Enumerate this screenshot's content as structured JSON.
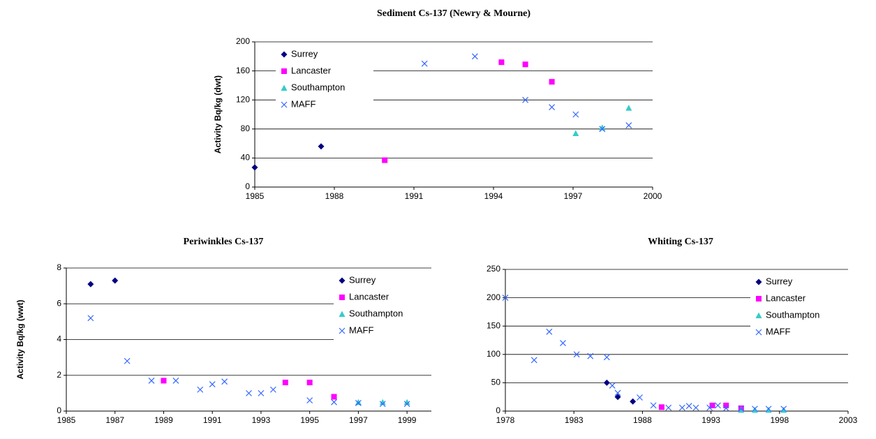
{
  "chart_data": [
    {
      "type": "scatter",
      "title": "Sediment Cs-137 (Newry & Mourne)",
      "y_label": "Activity Bq/kg (dwt)",
      "xlim": [
        1985,
        2000
      ],
      "xticks": [
        1985,
        1988,
        1991,
        1994,
        1997,
        2000
      ],
      "ylim": [
        0,
        200
      ],
      "yticks": [
        0,
        40,
        80,
        120,
        160,
        200
      ],
      "grid": true,
      "legend": "upper left",
      "series": [
        {
          "name": "Surrey",
          "color": "#000080",
          "marker": "diamond",
          "x": [
            1985.0,
            1987.5
          ],
          "values": [
            27,
            56
          ]
        },
        {
          "name": "Lancaster",
          "color": "#ff00ff",
          "marker": "square",
          "x": [
            1989.9,
            1994.3,
            1995.2,
            1996.2
          ],
          "values": [
            37,
            172,
            169,
            145
          ]
        },
        {
          "name": "Southampton",
          "color": "#33cccc",
          "marker": "triangle",
          "x": [
            1997.1,
            1998.1,
            1999.1
          ],
          "values": [
            74,
            82,
            109
          ]
        },
        {
          "name": "MAFF",
          "color": "#3366ff",
          "marker": "x",
          "x": [
            1991.4,
            1993.3,
            1995.2,
            1996.2,
            1997.1,
            1998.1,
            1999.1
          ],
          "values": [
            170,
            180,
            120,
            110,
            100,
            80,
            85
          ]
        }
      ]
    },
    {
      "type": "scatter",
      "title": "Periwinkles Cs-137",
      "y_label": "Activity Bq/kg (wwt)",
      "xlim": [
        1985,
        2000
      ],
      "xticks": [
        1985,
        1987,
        1989,
        1991,
        1993,
        1995,
        1997,
        1999
      ],
      "ylim": [
        0,
        8
      ],
      "yticks": [
        0,
        2,
        4,
        6,
        8
      ],
      "grid": true,
      "legend": "upper right",
      "series": [
        {
          "name": "Surrey",
          "color": "#000080",
          "marker": "diamond",
          "x": [
            1986,
            1987
          ],
          "values": [
            7.1,
            7.3
          ]
        },
        {
          "name": "Lancaster",
          "color": "#ff00ff",
          "marker": "square",
          "x": [
            1989,
            1994,
            1995,
            1996
          ],
          "values": [
            1.7,
            1.6,
            1.6,
            0.8
          ]
        },
        {
          "name": "Southampton",
          "color": "#33cccc",
          "marker": "triangle",
          "x": [
            1997,
            1998,
            1999
          ],
          "values": [
            0.5,
            0.5,
            0.5
          ]
        },
        {
          "name": "MAFF",
          "color": "#3366ff",
          "marker": "x",
          "x": [
            1986,
            1987.5,
            1988.5,
            1989.5,
            1990.5,
            1991,
            1991.5,
            1992.5,
            1993,
            1993.5,
            1995,
            1996,
            1997,
            1998,
            1999
          ],
          "values": [
            5.2,
            2.8,
            1.7,
            1.7,
            1.2,
            1.5,
            1.65,
            1.0,
            1.0,
            1.2,
            0.6,
            0.5,
            0.45,
            0.4,
            0.4
          ]
        }
      ]
    },
    {
      "type": "scatter",
      "title": "Whiting Cs-137",
      "xlim": [
        1978,
        2003
      ],
      "xticks": [
        1978,
        1983,
        1988,
        1993,
        1998,
        2003
      ],
      "ylim": [
        0,
        250
      ],
      "yticks": [
        0,
        50,
        100,
        150,
        200,
        250
      ],
      "grid": true,
      "legend": "upper right",
      "series": [
        {
          "name": "Surrey",
          "color": "#000080",
          "marker": "diamond",
          "x": [
            1985.4,
            1986.2,
            1987.3
          ],
          "values": [
            50,
            25,
            17
          ]
        },
        {
          "name": "Lancaster",
          "color": "#ff00ff",
          "marker": "square",
          "x": [
            1989.4,
            1993.1,
            1994.1,
            1995.2
          ],
          "values": [
            7,
            10,
            10,
            5
          ]
        },
        {
          "name": "Southampton",
          "color": "#33cccc",
          "marker": "triangle",
          "x": [
            1995.2,
            1996.2,
            1997.2,
            1998.3
          ],
          "values": [
            2,
            2,
            2,
            2
          ]
        },
        {
          "name": "MAFF",
          "color": "#3366ff",
          "marker": "x",
          "x": [
            1978,
            1980.1,
            1981.2,
            1982.2,
            1983.2,
            1984.2,
            1985.4,
            1985.8,
            1986.2,
            1987.8,
            1988.8,
            1989.9,
            1990.9,
            1991.4,
            1991.9,
            1992.9,
            1993.5,
            1994.1,
            1995.2,
            1996.2,
            1997.2,
            1998.3
          ],
          "values": [
            200,
            90,
            140,
            120,
            100,
            97,
            95,
            45,
            32,
            24,
            10,
            6,
            6,
            9,
            6,
            6,
            10,
            5,
            4,
            4,
            4,
            4
          ]
        }
      ]
    }
  ]
}
